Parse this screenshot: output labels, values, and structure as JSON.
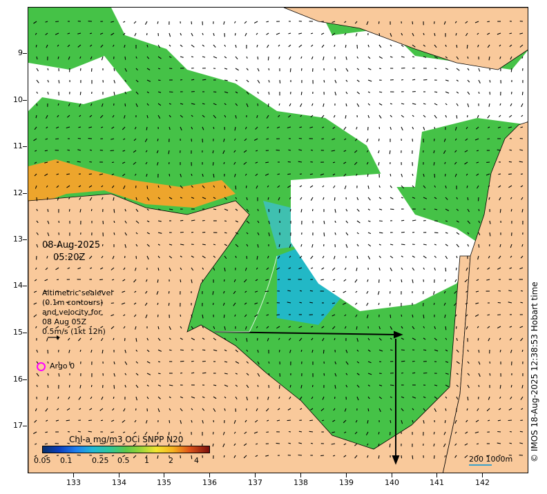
{
  "overlay": {
    "date": "08-Aug-2025",
    "time": "05:20Z",
    "legend_lines": [
      "Altimetric sealevel",
      "(0.1m contours)",
      "and velocity for",
      "08 Aug 05Z",
      "0.5m/s (1kt 12h)"
    ],
    "argo_label": "Argo 0"
  },
  "colorbar": {
    "title": "Chl-a mg/m3 OCi SNPP N20",
    "labels": [
      "0.05",
      "0.1",
      "0.25",
      "0.5",
      "1",
      "2",
      "4"
    ]
  },
  "axes": {
    "lat_labels": [
      "9",
      "10",
      "11",
      "12",
      "13",
      "14",
      "15",
      "16",
      "17"
    ],
    "lon_labels": [
      "133",
      "134",
      "135",
      "136",
      "137",
      "138",
      "139",
      "140",
      "141",
      "142"
    ]
  },
  "scale": {
    "label": "200  1000m"
  },
  "credit": "© IMOS 18-Aug-2025 12:38:53 Hobart time",
  "colors": {
    "land": "#f9c99b",
    "argo": "#ff00ff",
    "cloud": "#ffffff"
  }
}
